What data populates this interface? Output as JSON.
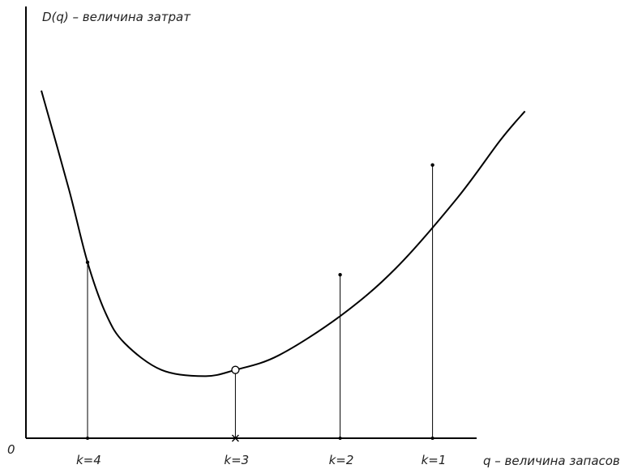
{
  "chart_data": {
    "type": "line",
    "origin_label": "0",
    "xlabel": "q – величина запасов",
    "ylabel": "D(q) – величина затрат",
    "grid": false,
    "legend": "none",
    "line_color": "#000000",
    "xlim": [
      0,
      10
    ],
    "ylim": [
      0,
      10
    ],
    "curve": {
      "x": [
        0.25,
        0.7,
        1.0,
        1.3,
        1.6,
        2.2,
        2.9,
        3.4,
        4.1,
        5.1,
        6.0,
        7.0,
        7.7,
        8.1
      ],
      "y": [
        8.4,
        6.0,
        4.25,
        3.0,
        2.3,
        1.65,
        1.5,
        1.65,
        2.0,
        2.95,
        4.1,
        5.8,
        7.2,
        7.9
      ]
    },
    "markers": [
      {
        "label": "k=4",
        "x": 1.0,
        "y": 4.25,
        "style": "dot"
      },
      {
        "label": "k=3",
        "x": 3.4,
        "y": 1.65,
        "style": "circle",
        "axis_style": "cross"
      },
      {
        "label": "k=2",
        "x": 5.1,
        "y": 3.95,
        "style": "dot"
      },
      {
        "label": "k=1",
        "x": 6.6,
        "y": 6.6,
        "style": "dot"
      }
    ]
  }
}
